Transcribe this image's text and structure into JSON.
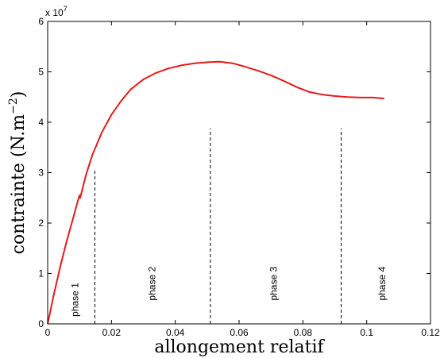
{
  "chart_data": {
    "type": "line",
    "xlabel": "allongement relatif",
    "ylabel": "contrainte (N.m",
    "ylabel_exponent": "−2",
    "ylabel_close": ")",
    "y_multiplier": "x 10",
    "y_multiplier_exponent": "7",
    "xlim": [
      0,
      0.12
    ],
    "ylim": [
      0,
      6
    ],
    "x_ticks": [
      0,
      0.02,
      0.04,
      0.06,
      0.08,
      0.1,
      0.12
    ],
    "x_tick_labels": [
      "0",
      "0.02",
      "0.04",
      "0.06",
      "0.08",
      "0.1",
      "0.12"
    ],
    "y_ticks": [
      0,
      1,
      2,
      3,
      4,
      5,
      6
    ],
    "y_tick_labels": [
      "0",
      "1",
      "2",
      "3",
      "4",
      "5",
      "6"
    ],
    "grid": false,
    "series": [
      {
        "color": "#e41a1c",
        "x": [
          0,
          0.002,
          0.004,
          0.006,
          0.008,
          0.0095,
          0.01,
          0.0102,
          0.011,
          0.012,
          0.013,
          0.014,
          0.015,
          0.017,
          0.02,
          0.023,
          0.026,
          0.03,
          0.034,
          0.038,
          0.042,
          0.046,
          0.05,
          0.054,
          0.058,
          0.062,
          0.066,
          0.07,
          0.074,
          0.078,
          0.082,
          0.086,
          0.09,
          0.094,
          0.098,
          0.102,
          0.1055
        ],
        "y": [
          0,
          0.6,
          1.15,
          1.65,
          2.1,
          2.45,
          2.55,
          2.5,
          2.7,
          2.95,
          3.15,
          3.35,
          3.5,
          3.8,
          4.15,
          4.42,
          4.65,
          4.85,
          4.98,
          5.07,
          5.13,
          5.17,
          5.19,
          5.2,
          5.17,
          5.1,
          5.02,
          4.93,
          4.82,
          4.7,
          4.6,
          4.55,
          4.52,
          4.5,
          4.49,
          4.49,
          4.47
        ]
      }
    ],
    "phase_lines": [
      {
        "x": 0.0148,
        "y_top": 3.05
      },
      {
        "x": 0.051,
        "y_top": 3.88
      },
      {
        "x": 0.092,
        "y_top": 3.88
      }
    ],
    "phase_labels": [
      {
        "text": "phase 1",
        "x": 0.0088,
        "y": 0.48
      },
      {
        "text": "phase 2",
        "x": 0.033,
        "y": 0.8
      },
      {
        "text": "phase 3",
        "x": 0.071,
        "y": 0.8
      },
      {
        "text": "phase 4",
        "x": 0.105,
        "y": 0.8
      }
    ]
  }
}
